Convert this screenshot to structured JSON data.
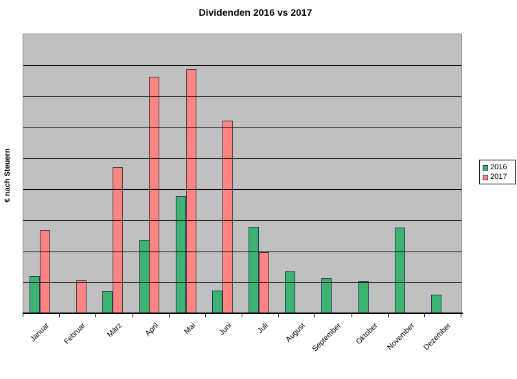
{
  "chart_data": {
    "type": "bar",
    "title": "Dividenden 2016 vs 2017",
    "ylabel": "€ nach Steuern",
    "xlabel": "",
    "categories": [
      "Januar",
      "Februar",
      "März",
      "April",
      "Mai",
      "Juni",
      "Juli",
      "August",
      "September",
      "Oktober",
      "November",
      "Dezember"
    ],
    "series": [
      {
        "name": "2016",
        "color": "#3CB371",
        "border_color": "#1F3864",
        "values": [
          11.9,
          0,
          7.1,
          23.6,
          37.9,
          7.3,
          27.8,
          13.5,
          11.3,
          10.4,
          27.6,
          6.0
        ]
      },
      {
        "name": "2017",
        "color": "#FF8585",
        "border_color": "#3A3A3A",
        "values": [
          26.7,
          10.6,
          47.2,
          76.3,
          78.8,
          62.2,
          19.6,
          0,
          0,
          0,
          0,
          0
        ]
      }
    ],
    "ylim": [
      0,
      90
    ],
    "y_divisions": 9,
    "y_tick_labels_visible": false,
    "grid": true,
    "gridline_color": "#000000",
    "plot_bg": "#C0C0C0",
    "plot_border": "#848484",
    "legend_position": "right"
  }
}
